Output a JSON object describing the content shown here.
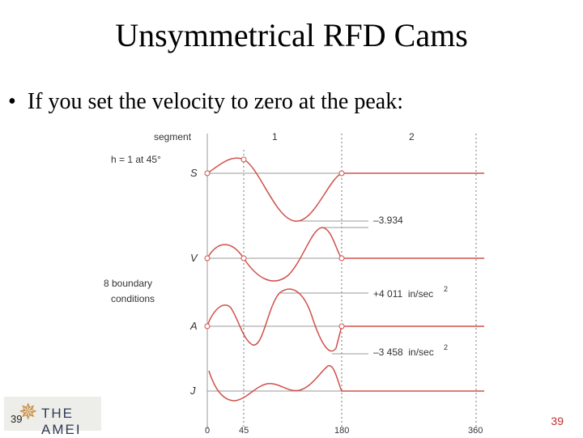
{
  "slide": {
    "title": "Unsymmetrical RFD Cams",
    "bullet_symbol": "•",
    "bullet_text": "If you set the velocity to zero at the peak:",
    "slide_number": "39",
    "logo_number": "39",
    "logo_text": "THE AMEI",
    "curve_color": "#d0504a"
  },
  "figure": {
    "segment_label": "segment",
    "segment_1": "1",
    "segment_2": "2",
    "h_label": "h = 1 at 45°",
    "row_labels": {
      "s": "S",
      "v": "V",
      "a": "A",
      "j": "J"
    },
    "boundary_line1": "8 boundary",
    "boundary_line2": "conditions",
    "annotations": {
      "s_min": "–3.934",
      "a_max": "+4 011  in/sec",
      "a_max_exp": "2",
      "a_min": "–3 458  in/sec",
      "a_min_exp": "2"
    },
    "x_ticks": [
      "0",
      "45",
      "180",
      "360"
    ]
  }
}
